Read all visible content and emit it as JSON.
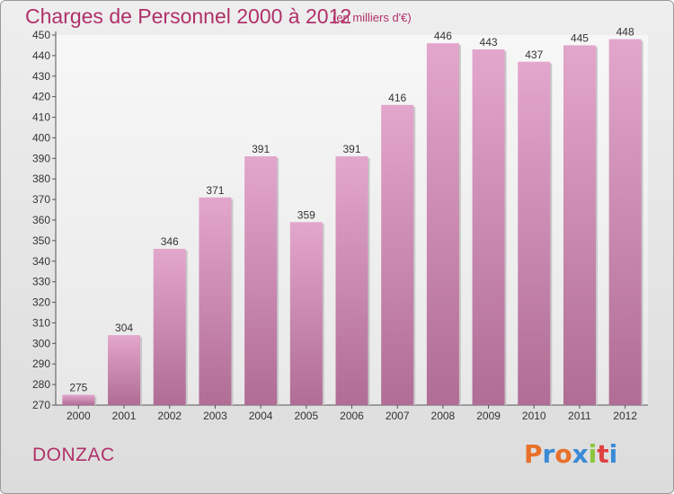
{
  "header": {
    "title": "Charges de Personnel 2000 à 2012",
    "unit": "(en milliers d'€)"
  },
  "footer": {
    "commune": "DONZAC",
    "logo_text": "Proxiti"
  },
  "colors": {
    "title": "#b0306a",
    "bar_light": "#e3a6cc",
    "bar_dark": "#b06d95",
    "logo": [
      "#e8702a",
      "#3a8ad6",
      "#e8702a",
      "#3a8ad6",
      "#8cc63f",
      "#e04040",
      "#3a8ad6"
    ]
  },
  "chart_data": {
    "type": "bar",
    "categories": [
      "2000",
      "2001",
      "2002",
      "2003",
      "2004",
      "2005",
      "2006",
      "2007",
      "2008",
      "2009",
      "2010",
      "2011",
      "2012"
    ],
    "values": [
      275,
      304,
      346,
      371,
      391,
      359,
      391,
      416,
      446,
      443,
      437,
      445,
      448
    ],
    "title": "Charges de Personnel 2000 à 2012",
    "ylim": [
      270,
      450
    ],
    "yticks": [
      270,
      280,
      290,
      300,
      310,
      320,
      330,
      340,
      350,
      360,
      370,
      380,
      390,
      400,
      410,
      420,
      430,
      440,
      450
    ],
    "grid": false,
    "data_labels": true
  }
}
